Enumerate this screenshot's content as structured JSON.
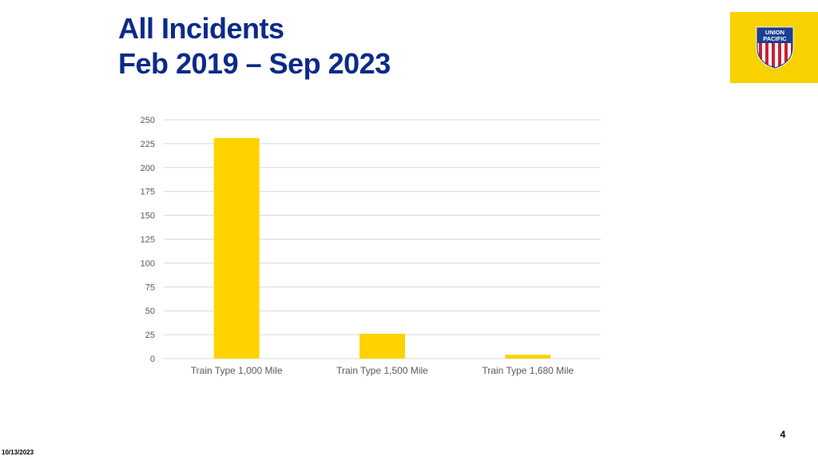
{
  "slide": {
    "title_line1": "All Incidents",
    "title_line2": "Feb 2019 – Sep 2023",
    "page_number": "4",
    "date": "10/13/2023",
    "logo_text_line1": "UNION",
    "logo_text_line2": "PACIFIC"
  },
  "colors": {
    "title": "#0b2a8a",
    "bar": "#ffd200",
    "logo_background": "#f8d100",
    "gridline": "#d9d9d9",
    "tick_text": "#595959"
  },
  "chart_data": {
    "type": "bar",
    "title": "",
    "xlabel": "",
    "ylabel": "",
    "categories": [
      "Train Type 1,000 Mile",
      "Train Type 1,500 Mile",
      "Train Type 1,680 Mile"
    ],
    "values": [
      231,
      26,
      4
    ],
    "ylim": [
      0,
      250
    ],
    "yticks": [
      0,
      25,
      50,
      75,
      100,
      125,
      150,
      175,
      200,
      225,
      250
    ],
    "grid": true,
    "legend": "none"
  }
}
